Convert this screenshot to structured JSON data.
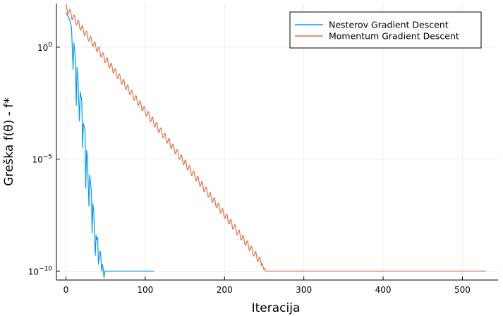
{
  "chart_data": {
    "type": "line",
    "title": "",
    "xlabel": "Iteracija",
    "ylabel": "Greška f(θ) - f*",
    "xlim": [
      -12,
      545
    ],
    "ylim_log10": [
      -10.4,
      1.95
    ],
    "yscale": "log",
    "grid": true,
    "legend_position": "top-right",
    "x_ticks": [
      {
        "value": 0,
        "label": "0"
      },
      {
        "value": 100,
        "label": "100"
      },
      {
        "value": 200,
        "label": "200"
      },
      {
        "value": 300,
        "label": "300"
      },
      {
        "value": 400,
        "label": "400"
      },
      {
        "value": 500,
        "label": "500"
      }
    ],
    "y_ticks": [
      {
        "log10": 0,
        "base": "10",
        "exp": "0"
      },
      {
        "log10": -5,
        "base": "10",
        "exp": "−5"
      },
      {
        "log10": -10,
        "base": "10",
        "exp": "−10"
      }
    ],
    "series": [
      {
        "name": "Nesterov Gradient Descent",
        "color": "#009af9",
        "x": [
          0,
          3,
          5,
          7,
          9,
          10,
          12,
          13,
          14,
          15,
          17,
          18,
          20,
          21,
          22,
          24,
          25,
          26,
          27,
          29,
          30,
          32,
          33,
          34,
          35,
          37,
          38,
          39,
          40,
          41,
          43,
          44,
          45,
          46,
          47,
          48,
          49,
          50,
          111
        ],
        "y_log10": [
          1.55,
          1.35,
          1.2,
          0.9,
          -1.0,
          0.2,
          -0.5,
          -2.6,
          -0.9,
          -1.3,
          -3.3,
          -2.0,
          -2.4,
          -4.5,
          -3.4,
          -3.7,
          -6.3,
          -4.6,
          -4.9,
          -7.1,
          -5.7,
          -6.4,
          -8.3,
          -7.0,
          -7.3,
          -9.3,
          -8.4,
          -8.6,
          -8.5,
          -9.7,
          -9.1,
          -9.3,
          -10.0,
          -9.7,
          -9.9,
          -10.3,
          -10.0,
          -10.0,
          -10.0
        ]
      },
      {
        "name": "Momentum Gradient Descent",
        "color": "#e26f46",
        "start_x": 0,
        "start_log10": 1.6,
        "slope_log10_per_iter": -0.0462,
        "oscillation_amplitude_log10": 0.32,
        "oscillation_period": 5.2,
        "floor_log10": -10.0,
        "end_x": 530
      }
    ]
  }
}
